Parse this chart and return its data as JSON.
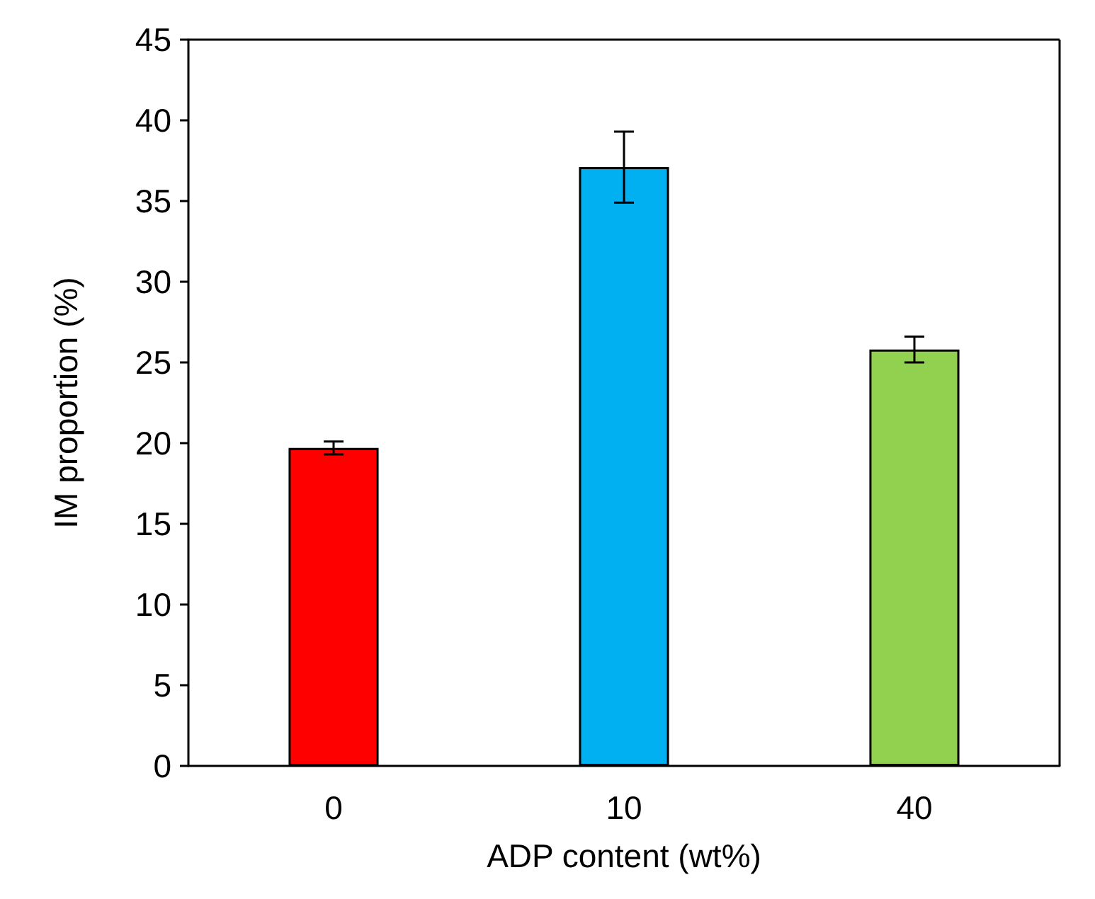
{
  "chart_data": {
    "type": "bar",
    "xlabel": "ADP content (wt%)",
    "ylabel": "IM proportion (%)",
    "categories": [
      "0",
      "10",
      "40"
    ],
    "values": [
      19.7,
      37.1,
      25.8
    ],
    "colors": [
      "#ff0000",
      "#00b0f0",
      "#92d050"
    ],
    "errors": [
      0.4,
      2.2,
      0.8
    ],
    "ylim": [
      0,
      45
    ],
    "yticks": [
      0,
      5,
      10,
      15,
      20,
      25,
      30,
      35,
      40,
      45
    ],
    "grid": false
  }
}
